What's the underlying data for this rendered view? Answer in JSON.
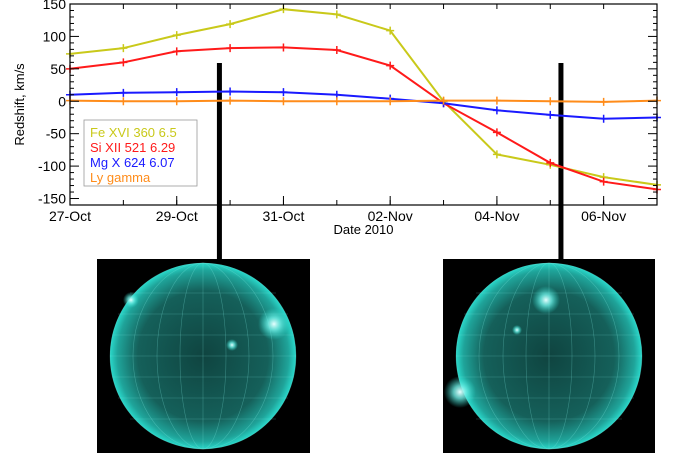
{
  "chart_data": {
    "type": "line",
    "title": "",
    "xlabel": "Date 2010",
    "ylabel": "Redshift, km/s",
    "xlim": [
      "2010-10-27",
      "2010-11-07"
    ],
    "ylim": [
      -160,
      150
    ],
    "x_tick_labels": [
      "27-Oct",
      "29-Oct",
      "31-Oct",
      "02-Nov",
      "04-Nov",
      "06-Nov"
    ],
    "x_tick_dates": [
      "2010-10-27",
      "2010-10-29",
      "2010-10-31",
      "2010-11-02",
      "2010-11-04",
      "2010-11-06"
    ],
    "y_ticks": [
      -150,
      -100,
      -50,
      0,
      50,
      100,
      150
    ],
    "grid": false,
    "legend_position": "left",
    "x": [
      "2010-10-27",
      "2010-10-28",
      "2010-10-29",
      "2010-10-30",
      "2010-10-31",
      "2010-11-01",
      "2010-11-02",
      "2010-11-03",
      "2010-11-04",
      "2010-11-05",
      "2010-11-06",
      "2010-11-07"
    ],
    "series": [
      {
        "name": "Fe XVI 360 6.5",
        "color": "#c9c91a",
        "values": [
          73,
          82,
          102,
          119,
          142,
          134,
          109,
          0,
          -82,
          -98,
          -117,
          -129
        ]
      },
      {
        "name": "Si XII 521 6.29",
        "color": "#ff1a1a",
        "values": [
          50,
          60,
          77,
          82,
          83,
          79,
          55,
          -3,
          -48,
          -95,
          -124,
          -136
        ]
      },
      {
        "name": "Mg X 624 6.07",
        "color": "#1a1aff",
        "values": [
          10,
          13,
          14,
          15,
          14,
          10,
          4,
          -3,
          -14,
          -21,
          -27,
          -25
        ]
      },
      {
        "name": "Ly gamma",
        "color": "#ff8c1a",
        "values": [
          1,
          0,
          0,
          1,
          0,
          0,
          0,
          1,
          1,
          0,
          -1,
          1
        ]
      }
    ]
  },
  "marker_lines": [
    "2010-10-29.8",
    "2010-11-05.2"
  ],
  "images": [
    {
      "name": "solar-disk-left",
      "color": "#29d6c8"
    },
    {
      "name": "solar-disk-right",
      "color": "#29d6c8"
    }
  ]
}
